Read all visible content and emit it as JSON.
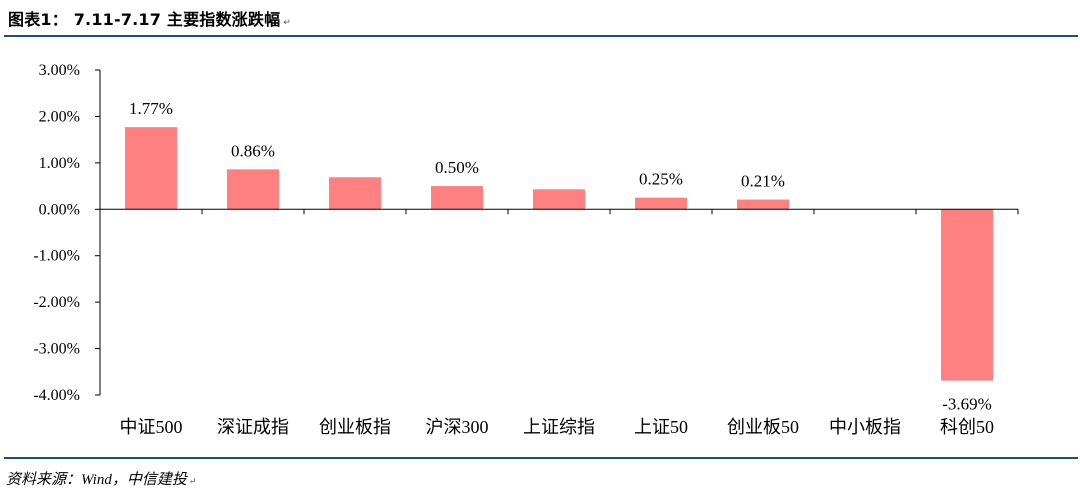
{
  "header": {
    "title": "图表1： 7.11-7.17 主要指数涨跌幅",
    "title_mark": "↵"
  },
  "footer": {
    "source": "资料来源：Wind，中信建投",
    "source_mark": "↵"
  },
  "chart_data": {
    "type": "bar",
    "categories": [
      "中证500",
      "深证成指",
      "创业板指",
      "沪深300",
      "上证综指",
      "上证50",
      "创业板50",
      "中小板指",
      "科创50"
    ],
    "values": [
      1.77,
      0.86,
      0.69,
      0.5,
      0.43,
      0.25,
      0.21,
      0.0,
      -3.69
    ],
    "data_labels": [
      "1.77%",
      "0.86%",
      "",
      "0.50%",
      "",
      "0.25%",
      "0.21%",
      "",
      "-3.69%"
    ],
    "ylim": [
      -4,
      3
    ],
    "yticks": [
      3,
      2,
      1,
      0,
      -1,
      -2,
      -3,
      -4
    ],
    "ytick_labels": [
      "3.00%",
      "2.00%",
      "1.00%",
      "0.00%",
      "-1.00%",
      "-2.00%",
      "-3.00%",
      "-4.00%"
    ],
    "bar_color": "#FF8080",
    "grid": false,
    "legend": "none"
  }
}
